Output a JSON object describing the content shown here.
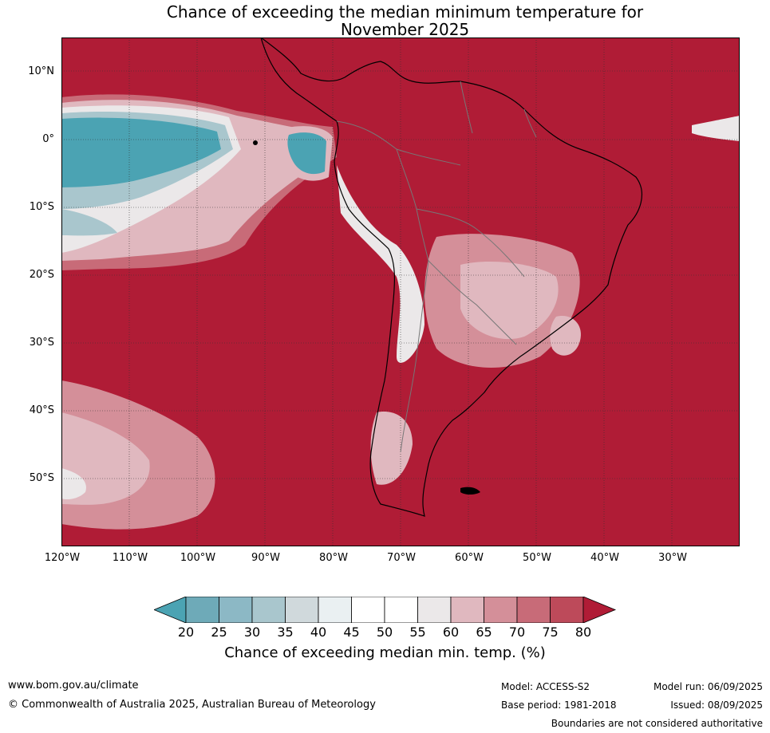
{
  "title_line1": "Chance of exceeding the median minimum temperature for",
  "title_line2": "November 2025",
  "lat_labels": [
    "10°N",
    "0°",
    "10°S",
    "20°S",
    "30°S",
    "40°S",
    "50°S"
  ],
  "lon_labels": [
    "120°W",
    "110°W",
    "100°W",
    "90°W",
    "80°W",
    "70°W",
    "60°W",
    "50°W",
    "40°W",
    "30°W"
  ],
  "colorbar": {
    "ticks": [
      "20",
      "25",
      "30",
      "35",
      "40",
      "45",
      "50",
      "55",
      "60",
      "65",
      "70",
      "75",
      "80"
    ],
    "colors": [
      "#4ba3b3",
      "#6eaab8",
      "#8cb8c5",
      "#a9c6cd",
      "#d0d9dc",
      "#eaf0f2",
      "#ffffff",
      "#ffffff",
      "#ebe8e9",
      "#e0b8bf",
      "#d48f99",
      "#c86b78",
      "#bd4a5a",
      "#b01c36"
    ],
    "label": "Chance of exceeding median min. temp. (%)"
  },
  "footer": {
    "website": "www.bom.gov.au/climate",
    "copyright": "© Commonwealth of Australia 2025, Australian Bureau of Meteorology",
    "model": "Model: ACCESS-S2",
    "base_period": "Base period: 1981-2018",
    "model_run": "Model run: 06/09/2025",
    "issued": "Issued: 08/09/2025",
    "disclaimer": "Boundaries are not considered authoritative"
  }
}
